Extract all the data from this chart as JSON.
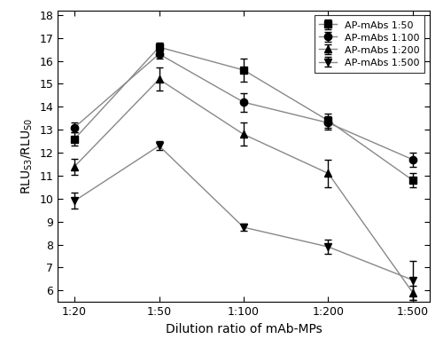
{
  "x_labels": [
    "1:20",
    "1:50",
    "1:100",
    "1:200",
    "1:500"
  ],
  "x_positions": [
    0,
    1,
    2,
    3,
    4
  ],
  "series": [
    {
      "label": "AP-mAbs 1:50",
      "marker": "s",
      "y": [
        12.6,
        16.6,
        15.6,
        13.4,
        10.8
      ],
      "yerr": [
        0.3,
        0.2,
        0.5,
        0.3,
        0.3
      ]
    },
    {
      "label": "AP-mAbs 1:100",
      "marker": "o",
      "y": [
        13.1,
        16.3,
        14.2,
        13.3,
        11.7
      ],
      "yerr": [
        0.2,
        0.2,
        0.4,
        0.3,
        0.3
      ]
    },
    {
      "label": "AP-mAbs 1:200",
      "marker": "^",
      "y": [
        11.4,
        15.2,
        12.8,
        11.1,
        5.9
      ],
      "yerr": [
        0.35,
        0.5,
        0.5,
        0.6,
        0.3
      ]
    },
    {
      "label": "AP-mAbs 1:500",
      "marker": "v",
      "y": [
        9.9,
        12.3,
        8.75,
        7.9,
        6.45
      ],
      "yerr": [
        0.35,
        0.2,
        0.15,
        0.3,
        0.85
      ]
    }
  ],
  "ylabel": "RLU$_\\mathrm{S3}$/RLU$_\\mathrm{S0}$",
  "xlabel": "Dilution ratio of mAb-MPs",
  "ylim": [
    5.5,
    18.2
  ],
  "yticks": [
    6,
    7,
    8,
    9,
    10,
    11,
    12,
    13,
    14,
    15,
    16,
    17,
    18
  ],
  "line_color": "#888888",
  "marker_color": "black",
  "marker_face_color": "black",
  "background_color": "#ffffff",
  "legend_loc": "upper right"
}
